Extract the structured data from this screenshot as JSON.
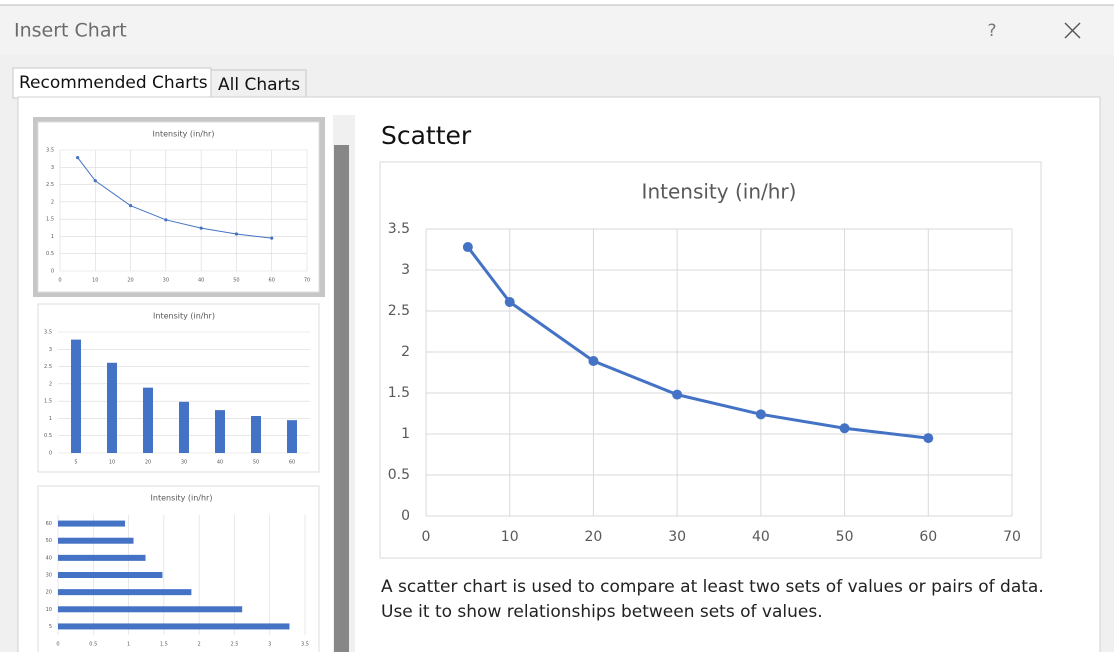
{
  "dialog": {
    "title": "Insert Chart",
    "help": "?"
  },
  "tabs": [
    "Recommended Charts",
    "All Charts"
  ],
  "preview": {
    "name": "Scatter",
    "description": "A scatter chart is used to compare at least two sets of values or pairs of data. Use it to show relationships between sets of values."
  },
  "chart_data": {
    "type": "scatter",
    "title": "Intensity (in/hr)",
    "x": [
      5,
      10,
      20,
      30,
      40,
      50,
      60
    ],
    "values": [
      3.28,
      2.61,
      1.89,
      1.48,
      1.24,
      1.07,
      0.95
    ],
    "color": "#4472c4",
    "xlim": [
      0,
      70
    ],
    "xticks": [
      0,
      10,
      20,
      30,
      40,
      50,
      60,
      70
    ],
    "ylim": [
      0,
      3.5
    ],
    "yticks": [
      0,
      0.5,
      1,
      1.5,
      2,
      2.5,
      3,
      3.5
    ],
    "grid": true
  }
}
